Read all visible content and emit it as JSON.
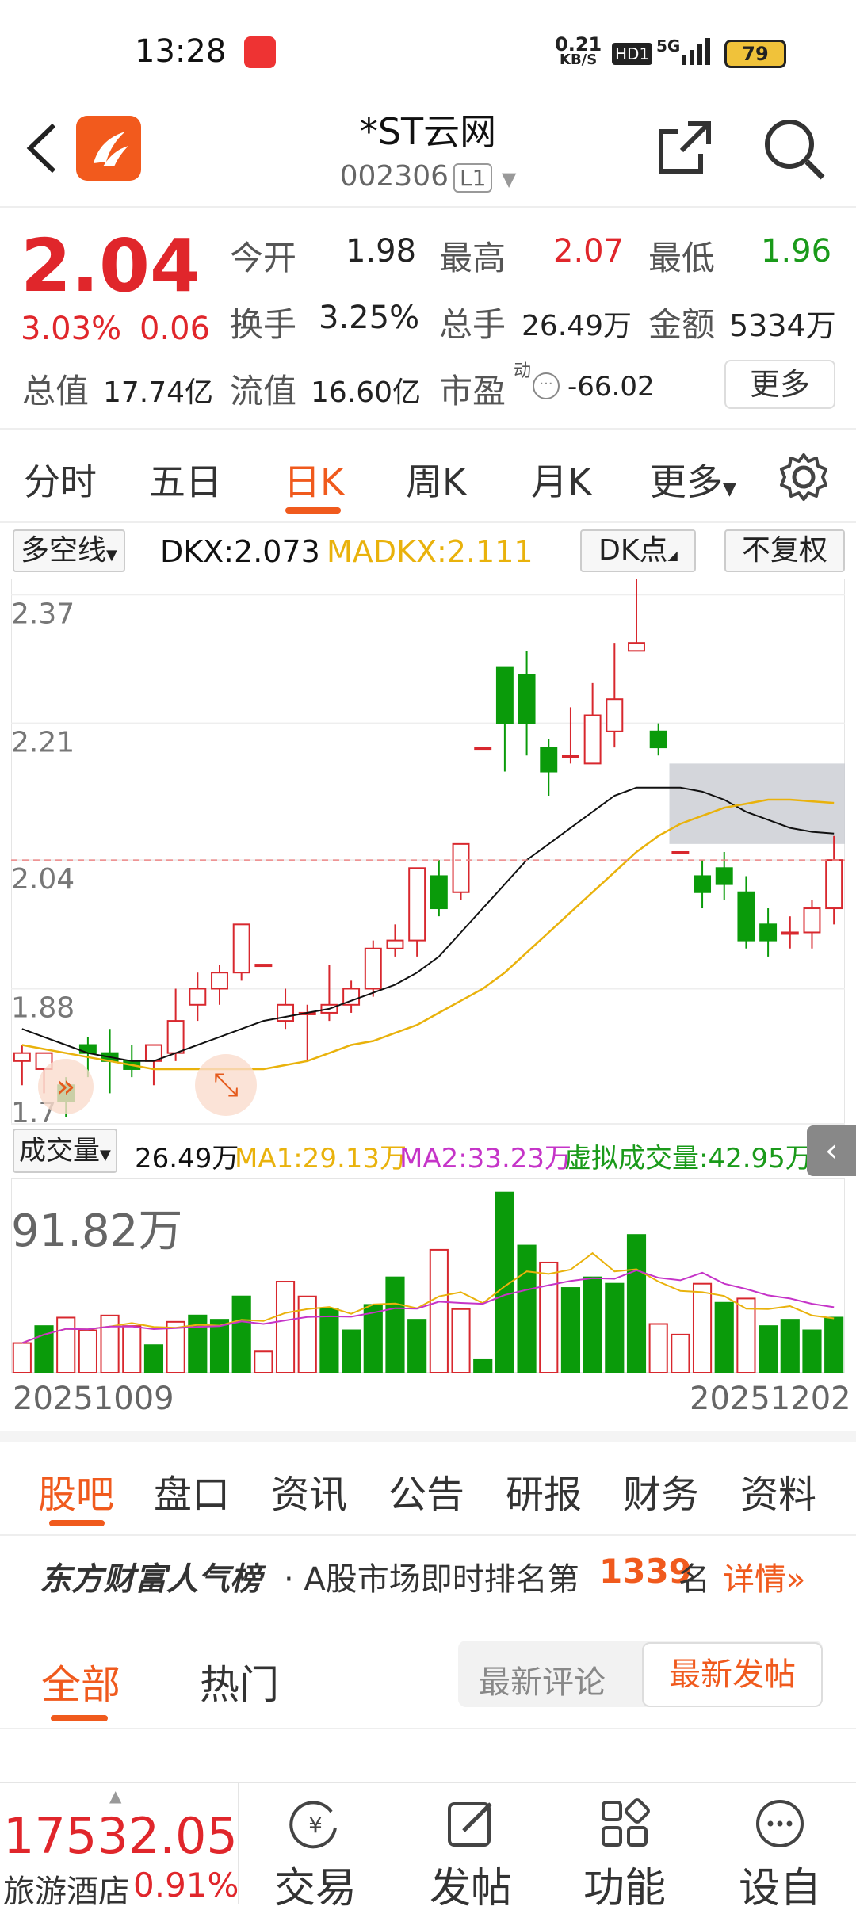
{
  "status_bar": {
    "time": "13:28",
    "net_speed_value": "0.21",
    "net_speed_unit": "KB/S",
    "hd": "HD1",
    "signal": "5G",
    "battery": "79"
  },
  "header": {
    "stock_name": "*ST云网",
    "stock_code": "002306",
    "level_badge": "L1"
  },
  "quote": {
    "price": "2.04",
    "change_pct": "3.03%",
    "change_amt": "0.06",
    "open_label": "今开",
    "open": "1.98",
    "high_label": "最高",
    "high": "2.07",
    "low_label": "最低",
    "low": "1.96",
    "turnover_label": "换手",
    "turnover": "3.25%",
    "volume_label": "总手",
    "volume": "26.49万",
    "amount_label": "金额",
    "amount": "5334万",
    "mktcap_label": "总值",
    "mktcap": "17.74亿",
    "float_label": "流值",
    "float": "16.60亿",
    "pe_label": "市盈",
    "pe_sup": "动",
    "pe": "-66.02",
    "more_button": "更多"
  },
  "period_tabs": [
    "分时",
    "五日",
    "日K",
    "周K",
    "月K",
    "更多"
  ],
  "active_period": "日K",
  "indicator_bar": {
    "selector": "多空线",
    "dkx": "DKX:2.073",
    "madkx": "MADKX:2.111",
    "dk_points": "DK点",
    "adjust": "不复权"
  },
  "chart_data": [
    {
      "type": "candlestick",
      "y_ticks": [
        "2.37",
        "2.21",
        "2.04",
        "1.88",
        "1.7"
      ],
      "ylim": [
        1.71,
        2.39
      ],
      "current_price_line": 2.04,
      "x_start": "20251009",
      "x_end": "20251202",
      "candles": [
        {
          "o": 1.79,
          "c": 1.8,
          "h": 1.81,
          "l": 1.76
        },
        {
          "o": 1.78,
          "c": 1.8,
          "h": 1.8,
          "l": 1.75
        },
        {
          "o": 1.76,
          "c": 1.74,
          "h": 1.77,
          "l": 1.72
        },
        {
          "o": 1.81,
          "c": 1.8,
          "h": 1.82,
          "l": 1.77
        },
        {
          "o": 1.8,
          "c": 1.79,
          "h": 1.83,
          "l": 1.75
        },
        {
          "o": 1.79,
          "c": 1.78,
          "h": 1.81,
          "l": 1.77
        },
        {
          "o": 1.79,
          "c": 1.81,
          "h": 1.81,
          "l": 1.76
        },
        {
          "o": 1.8,
          "c": 1.84,
          "h": 1.88,
          "l": 1.79
        },
        {
          "o": 1.86,
          "c": 1.88,
          "h": 1.9,
          "l": 1.84
        },
        {
          "o": 1.88,
          "c": 1.9,
          "h": 1.91,
          "l": 1.86
        },
        {
          "o": 1.9,
          "c": 1.96,
          "h": 1.96,
          "l": 1.89
        },
        {
          "o": 1.91,
          "c": 1.91,
          "h": 1.91,
          "l": 1.91
        },
        {
          "o": 1.84,
          "c": 1.86,
          "h": 1.88,
          "l": 1.83
        },
        {
          "o": 1.85,
          "c": 1.85,
          "h": 1.86,
          "l": 1.79
        },
        {
          "o": 1.85,
          "c": 1.86,
          "h": 1.91,
          "l": 1.84
        },
        {
          "o": 1.86,
          "c": 1.88,
          "h": 1.89,
          "l": 1.85
        },
        {
          "o": 1.88,
          "c": 1.93,
          "h": 1.94,
          "l": 1.87
        },
        {
          "o": 1.93,
          "c": 1.94,
          "h": 1.96,
          "l": 1.92
        },
        {
          "o": 1.94,
          "c": 2.03,
          "h": 2.03,
          "l": 1.92
        },
        {
          "o": 2.02,
          "c": 1.98,
          "h": 2.04,
          "l": 1.97
        },
        {
          "o": 2.0,
          "c": 2.06,
          "h": 2.06,
          "l": 1.99
        },
        {
          "o": 2.18,
          "c": 2.18,
          "h": 2.18,
          "l": 2.18
        },
        {
          "o": 2.28,
          "c": 2.21,
          "h": 2.28,
          "l": 2.15
        },
        {
          "o": 2.27,
          "c": 2.21,
          "h": 2.3,
          "l": 2.17
        },
        {
          "o": 2.18,
          "c": 2.15,
          "h": 2.19,
          "l": 2.12
        },
        {
          "o": 2.17,
          "c": 2.17,
          "h": 2.23,
          "l": 2.16
        },
        {
          "o": 2.16,
          "c": 2.22,
          "h": 2.26,
          "l": 2.16
        },
        {
          "o": 2.2,
          "c": 2.24,
          "h": 2.31,
          "l": 2.18
        },
        {
          "o": 2.3,
          "c": 2.31,
          "h": 2.39,
          "l": 2.3
        },
        {
          "o": 2.2,
          "c": 2.18,
          "h": 2.21,
          "l": 2.17
        },
        {
          "o": 2.05,
          "c": 2.05,
          "h": 2.05,
          "l": 2.05
        },
        {
          "o": 2.02,
          "c": 2.0,
          "h": 2.04,
          "l": 1.98
        },
        {
          "o": 2.03,
          "c": 2.01,
          "h": 2.05,
          "l": 1.99
        },
        {
          "o": 2.0,
          "c": 1.94,
          "h": 2.02,
          "l": 1.93
        },
        {
          "o": 1.96,
          "c": 1.94,
          "h": 1.98,
          "l": 1.92
        },
        {
          "o": 1.95,
          "c": 1.95,
          "h": 1.97,
          "l": 1.93
        },
        {
          "o": 1.95,
          "c": 1.98,
          "h": 1.99,
          "l": 1.93
        },
        {
          "o": 1.98,
          "c": 2.04,
          "h": 2.07,
          "l": 1.96
        }
      ],
      "series": [
        {
          "name": "DKX",
          "color": "#111111",
          "values": [
            1.83,
            1.82,
            1.81,
            1.8,
            1.795,
            1.79,
            1.79,
            1.8,
            1.81,
            1.82,
            1.83,
            1.84,
            1.845,
            1.85,
            1.855,
            1.865,
            1.875,
            1.885,
            1.9,
            1.92,
            1.95,
            1.98,
            2.01,
            2.04,
            2.06,
            2.08,
            2.1,
            2.12,
            2.13,
            2.13,
            2.13,
            2.125,
            2.115,
            2.1,
            2.09,
            2.08,
            2.075,
            2.073
          ]
        },
        {
          "name": "MADKX",
          "color": "#e9b20c",
          "values": [
            1.81,
            1.805,
            1.8,
            1.795,
            1.79,
            1.785,
            1.78,
            1.78,
            1.78,
            1.78,
            1.78,
            1.78,
            1.785,
            1.79,
            1.8,
            1.81,
            1.815,
            1.825,
            1.835,
            1.85,
            1.865,
            1.88,
            1.9,
            1.925,
            1.95,
            1.975,
            2.0,
            2.025,
            2.05,
            2.07,
            2.085,
            2.095,
            2.105,
            2.11,
            2.115,
            2.115,
            2.113,
            2.111
          ]
        }
      ]
    },
    {
      "type": "bar",
      "title": "成交量",
      "current": "26.49万",
      "ma1": "MA1:29.13万",
      "ma2": "MA2:33.23万",
      "virtual": "虚拟成交量:42.95万",
      "max_label": "91.82万",
      "ylim": [
        0,
        92
      ],
      "values": [
        14,
        22,
        26,
        20,
        27,
        22,
        13,
        24,
        27,
        25,
        36,
        10,
        43,
        36,
        30,
        20,
        32,
        45,
        25,
        58,
        30,
        6,
        85,
        60,
        52,
        40,
        45,
        42,
        65,
        23,
        18,
        42,
        33,
        35,
        22,
        25,
        20,
        26
      ],
      "up": [
        false,
        true,
        false,
        false,
        false,
        false,
        true,
        false,
        true,
        true,
        true,
        false,
        false,
        false,
        true,
        true,
        true,
        true,
        true,
        false,
        false,
        true,
        true,
        true,
        false,
        true,
        true,
        true,
        true,
        false,
        false,
        false,
        true,
        false,
        true,
        true,
        true,
        true
      ]
    }
  ],
  "info_tabs": [
    "股吧",
    "盘口",
    "资讯",
    "公告",
    "研报",
    "财务",
    "资料"
  ],
  "active_info_tab": "股吧",
  "ranking": {
    "brand": "东方财富人气榜",
    "text": "· A股市场即时排名第",
    "rank": "1339",
    "suffix": "名",
    "link": "详情"
  },
  "forum_tabs": {
    "all": "全部",
    "hot": "热门",
    "latest_comment": "最新评论",
    "latest_post": "最新发帖"
  },
  "bottom_nav": {
    "index_value": "17532.05",
    "sector": "旅游酒店",
    "sector_change": "0.91%",
    "trade": "交易",
    "post": "发帖",
    "function": "功能",
    "settings": "设自"
  }
}
